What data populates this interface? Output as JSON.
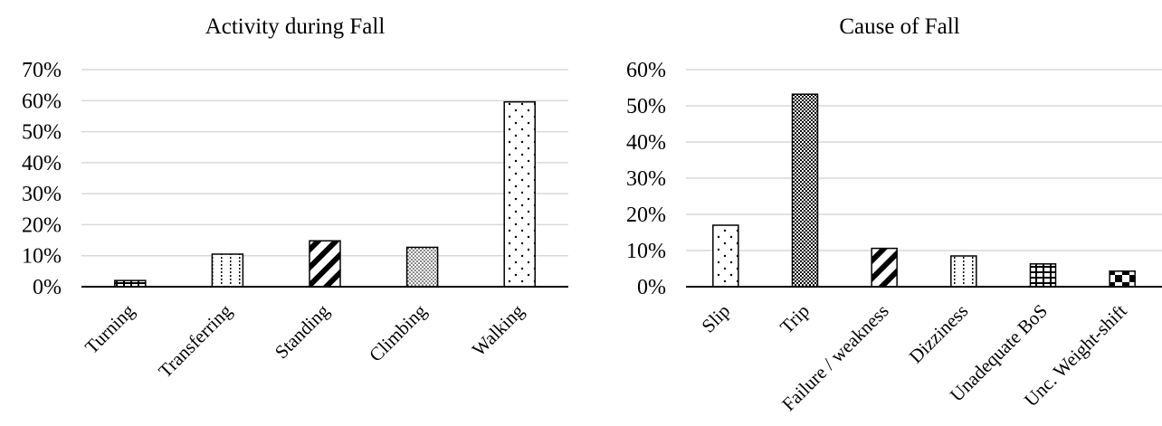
{
  "chart_data": [
    {
      "type": "bar",
      "title": "Activity during Fall",
      "xlabel": "",
      "ylabel": "",
      "ylim": [
        0,
        0.7
      ],
      "yticks": [
        "0%",
        "10%",
        "20%",
        "30%",
        "40%",
        "50%",
        "60%",
        "70%"
      ],
      "grid": true,
      "legend": "none",
      "categories": [
        "Turning",
        "Transferring",
        "Standing",
        "Climbing",
        "Walking"
      ],
      "values": [
        0.02,
        0.105,
        0.148,
        0.127,
        0.596
      ],
      "patterns": [
        "bricks",
        "dotted-vlines",
        "diag-thick",
        "fine-dots",
        "sparse-dots"
      ]
    },
    {
      "type": "bar",
      "title": "Cause of Fall",
      "xlabel": "",
      "ylabel": "",
      "ylim": [
        0,
        0.6
      ],
      "yticks": [
        "0%",
        "10%",
        "20%",
        "30%",
        "40%",
        "50%",
        "60%"
      ],
      "grid": true,
      "legend": "none",
      "categories": [
        "Slip",
        "Trip",
        "Failure / weakness",
        "Dizziness",
        "Unadequate BoS",
        "Unc. Weight-shift"
      ],
      "values": [
        0.17,
        0.532,
        0.106,
        0.085,
        0.063,
        0.043
      ],
      "patterns": [
        "sparse-dots",
        "crosshatch-dense",
        "diag-thick",
        "dotted-vlines",
        "bricks",
        "checker"
      ]
    }
  ]
}
